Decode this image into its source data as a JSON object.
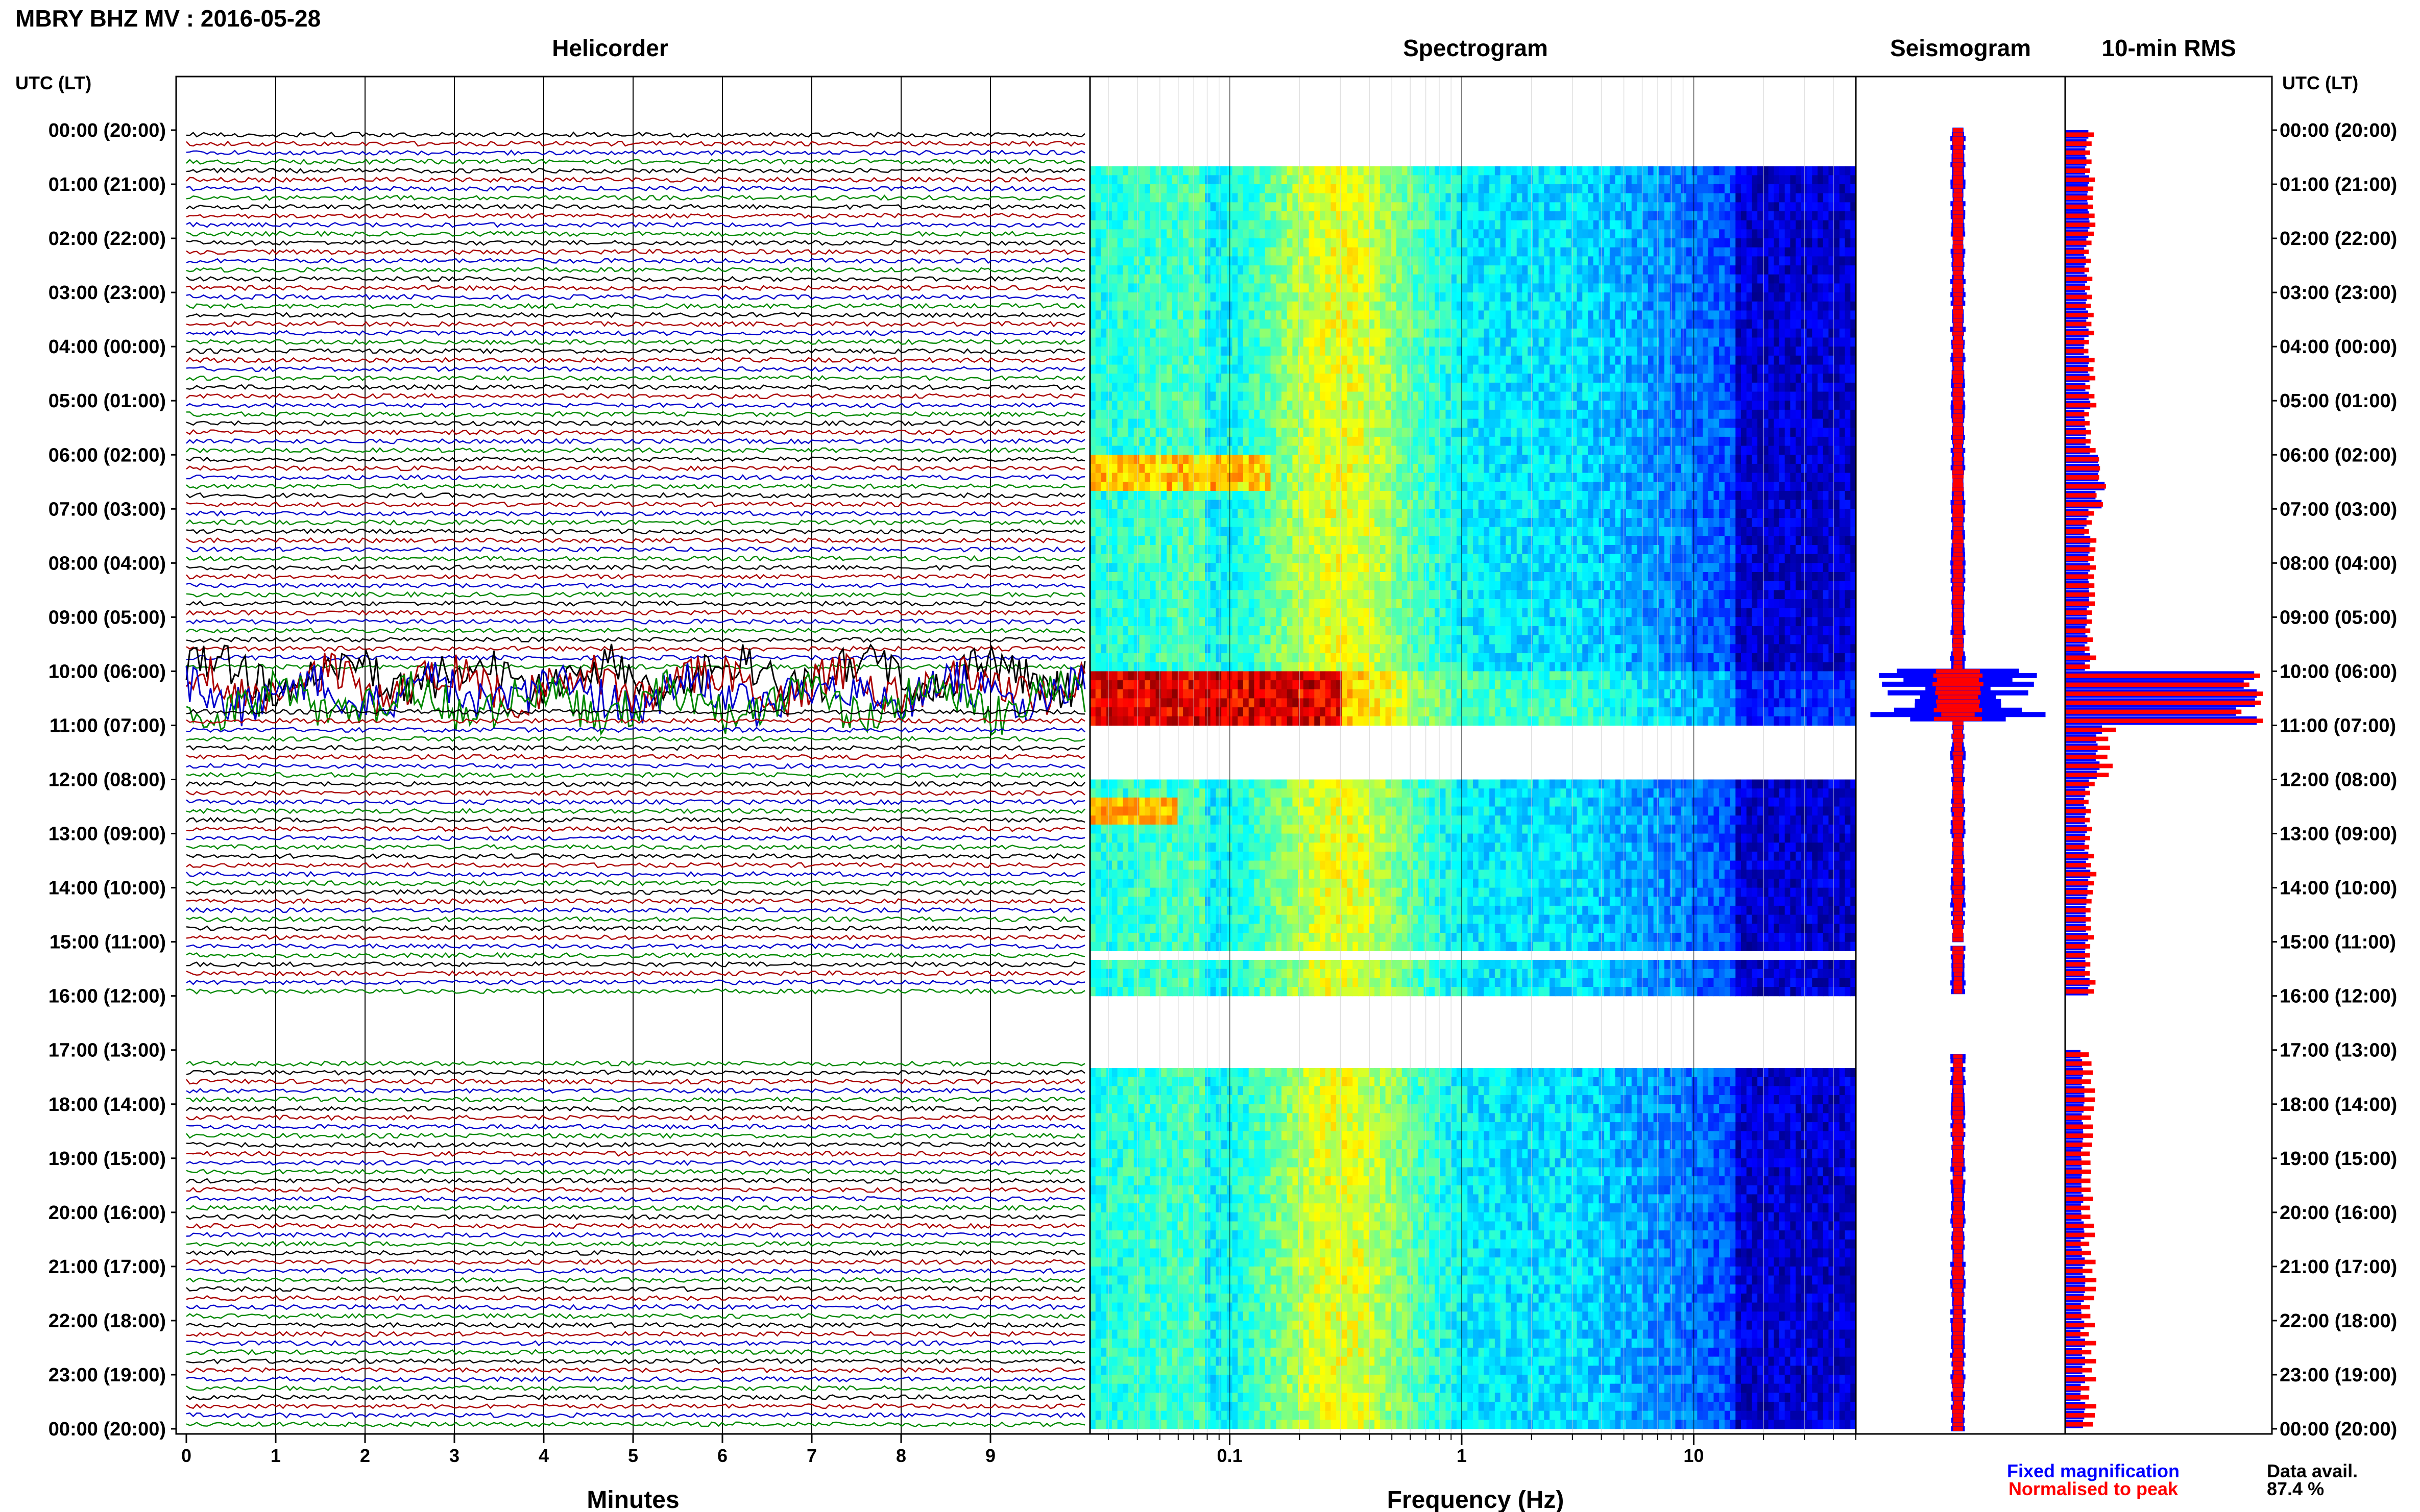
{
  "header": {
    "title": "MBRY BHZ MV : 2016-05-28"
  },
  "time_axis_label": "UTC (LT)",
  "hour_labels": [
    "00:00 (20:00)",
    "01:00 (21:00)",
    "02:00 (22:00)",
    "03:00 (23:00)",
    "04:00 (00:00)",
    "05:00 (01:00)",
    "06:00 (02:00)",
    "07:00 (03:00)",
    "08:00 (04:00)",
    "09:00 (05:00)",
    "10:00 (06:00)",
    "11:00 (07:00)",
    "12:00 (08:00)",
    "13:00 (09:00)",
    "14:00 (10:00)",
    "15:00 (11:00)",
    "16:00 (12:00)",
    "17:00 (13:00)",
    "18:00 (14:00)",
    "19:00 (15:00)",
    "20:00 (16:00)",
    "21:00 (17:00)",
    "22:00 (18:00)",
    "23:00 (19:00)",
    "00:00 (20:00)"
  ],
  "legend": {
    "fixed": "Fixed magnification",
    "normalised": "Normalised to peak",
    "fixed_color": "#0000ff",
    "normalised_color": "#ff0000"
  },
  "availability": {
    "label": "Data avail.",
    "value": "87.4 %"
  },
  "colors": {
    "helicorder_traces": [
      "#000000",
      "#aa0000",
      "#0000cc",
      "#008800"
    ],
    "rms_fixed": "#0000ff",
    "rms_normalised": "#ff0000"
  },
  "chart_data": [
    {
      "type": "line",
      "title": "Helicorder",
      "xlabel": "Minutes",
      "xlim": [
        0,
        10
      ],
      "x_ticks": [
        "0",
        "1",
        "2",
        "3",
        "4",
        "5",
        "6",
        "7",
        "8",
        "9"
      ],
      "rows_per_hour": 6,
      "hours": 24,
      "gaps_hours": [
        [
          16.0,
          17.1
        ]
      ],
      "event_hours": [
        10.0,
        10.6
      ]
    },
    {
      "type": "heatmap",
      "title": "Spectrogram",
      "xlabel": "Frequency (Hz)",
      "xscale": "log",
      "xlim": [
        0.025,
        50
      ],
      "x_ticks": [
        "0.1",
        "1",
        "10"
      ],
      "colormap": "jet",
      "gaps_hours": [
        [
          0.0,
          0.55
        ],
        [
          1.25,
          1.3
        ],
        [
          4.7,
          4.75
        ],
        [
          10.95,
          11.9
        ],
        [
          15.1,
          15.2
        ],
        [
          16.0,
          17.3
        ]
      ],
      "event_hours": [
        10.0,
        10.9
      ]
    },
    {
      "type": "line",
      "title": "Seismogram",
      "gaps_hours": [
        [
          15.0,
          15.1
        ],
        [
          16.0,
          17.1
        ]
      ],
      "event_hours": [
        10.0,
        10.9
      ]
    },
    {
      "type": "bar",
      "title": "10-min RMS",
      "series": [
        {
          "name": "Fixed magnification",
          "hourly": [
            1.0,
            1.0,
            1.0,
            1.0,
            1.0,
            1.0,
            1.6,
            1.0,
            1.0,
            1.0,
            3.5,
            1.5,
            1.0,
            1.0,
            1.0,
            1.0,
            0,
            0.8,
            0.8,
            0.8,
            0.8,
            0.8,
            0.8,
            0.8
          ]
        },
        {
          "name": "Normalised to peak",
          "hourly": [
            0.3,
            0.3,
            0.3,
            0.3,
            0.3,
            0.3,
            0.4,
            0.3,
            0.3,
            0.3,
            1.0,
            0.5,
            0.3,
            0.3,
            0.3,
            0.3,
            0,
            0.3,
            0.3,
            0.3,
            0.3,
            0.3,
            0.3,
            0.3
          ]
        }
      ],
      "gaps_hours": [
        [
          16.0,
          17.0
        ]
      ]
    }
  ]
}
